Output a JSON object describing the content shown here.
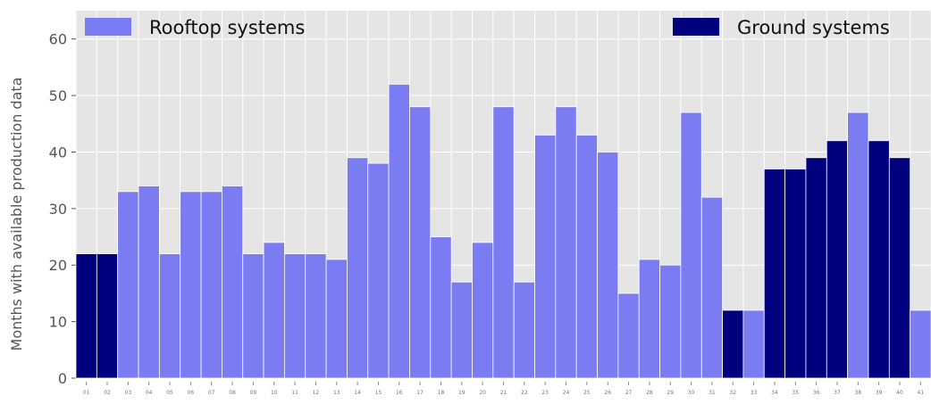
{
  "chart_data": {
    "type": "bar",
    "title": "",
    "xlabel": "",
    "ylabel": "Months with available production data",
    "ylim": [
      0,
      65
    ],
    "yticks": [
      0,
      10,
      20,
      30,
      40,
      50,
      60
    ],
    "grid": true,
    "legend_placement": "top",
    "categories": [
      "01",
      "02",
      "03",
      "04",
      "05",
      "06",
      "07",
      "08",
      "09",
      "10",
      "11",
      "12",
      "13",
      "14",
      "15",
      "16",
      "17",
      "18",
      "19",
      "20",
      "21",
      "22",
      "23",
      "24",
      "25",
      "26",
      "27",
      "28",
      "29",
      "30",
      "31",
      "32",
      "33",
      "34",
      "35",
      "36",
      "37",
      "38",
      "39",
      "40",
      "41"
    ],
    "values": [
      22,
      22,
      33,
      34,
      22,
      33,
      33,
      34,
      22,
      24,
      22,
      22,
      21,
      39,
      38,
      52,
      48,
      25,
      17,
      24,
      48,
      17,
      43,
      48,
      43,
      40,
      15,
      21,
      20,
      47,
      32,
      12,
      12,
      37,
      37,
      39,
      42,
      47,
      42,
      39,
      12
    ],
    "groups": [
      "ground",
      "ground",
      "rooftop",
      "rooftop",
      "rooftop",
      "rooftop",
      "rooftop",
      "rooftop",
      "rooftop",
      "rooftop",
      "rooftop",
      "rooftop",
      "rooftop",
      "rooftop",
      "rooftop",
      "rooftop",
      "rooftop",
      "rooftop",
      "rooftop",
      "rooftop",
      "rooftop",
      "rooftop",
      "rooftop",
      "rooftop",
      "rooftop",
      "rooftop",
      "rooftop",
      "rooftop",
      "rooftop",
      "rooftop",
      "rooftop",
      "ground",
      "rooftop",
      "ground",
      "ground",
      "ground",
      "ground",
      "rooftop",
      "ground",
      "ground",
      "rooftop"
    ],
    "series": [
      {
        "key": "rooftop",
        "name": "Rooftop systems",
        "color": "#7b7bf2"
      },
      {
        "key": "ground",
        "name": "Ground systems",
        "color": "#00007f"
      }
    ],
    "colors": {
      "plot_background": "#e5e5e5",
      "grid": "#ffffff",
      "text": "#555555"
    }
  }
}
